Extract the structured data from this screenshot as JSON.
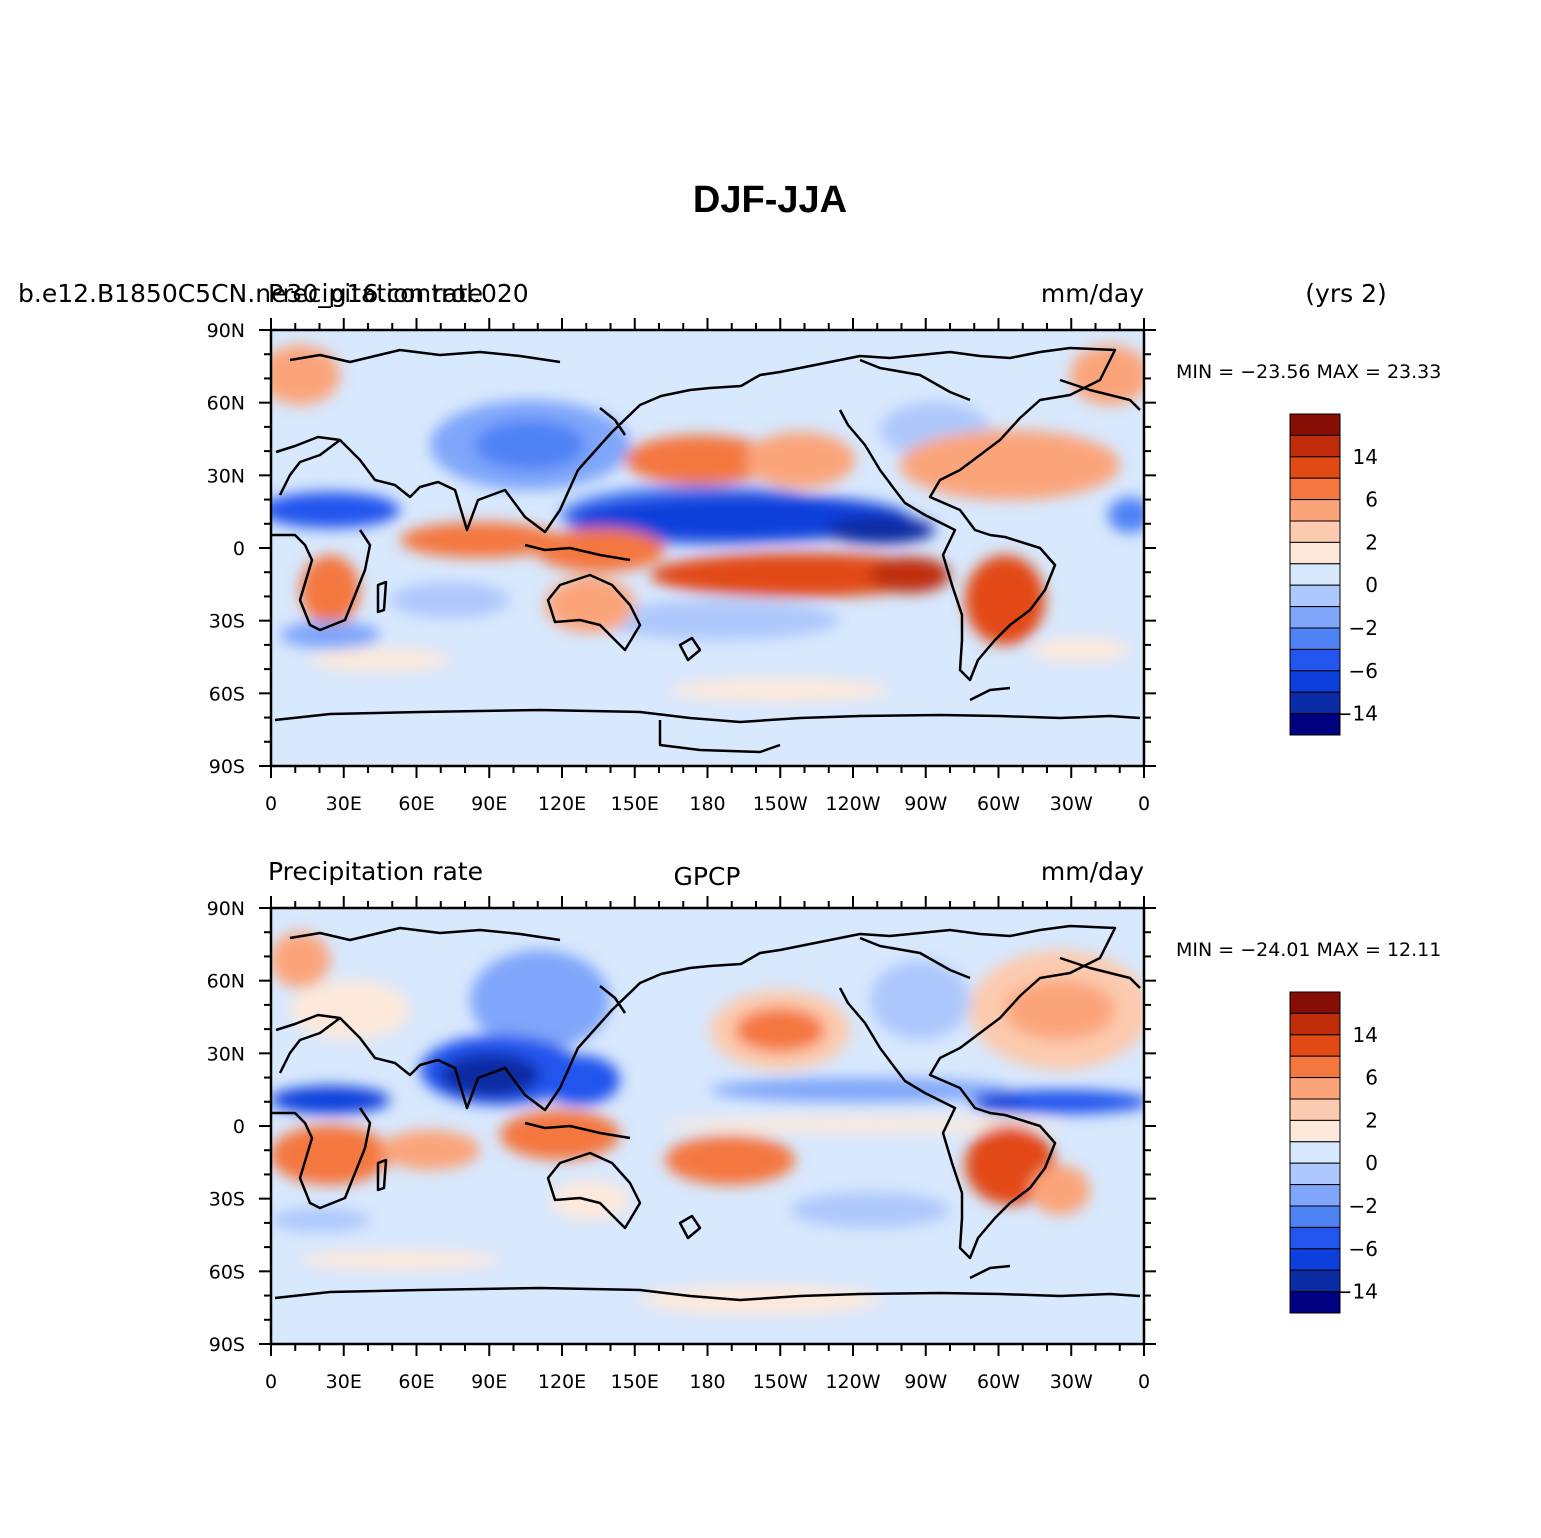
{
  "figure": {
    "title": "DJF-JJA"
  },
  "colorbar_palette": [
    "#000080",
    "#0a2ba3",
    "#0c3fdb",
    "#2255ee",
    "#4f82f5",
    "#7fa6fa",
    "#adc8fc",
    "#d8e8fd",
    "#fde9dc",
    "#fccaae",
    "#fba47a",
    "#f4773f",
    "#e24a14",
    "#bf2d0b",
    "#870e04"
  ],
  "colorbar_labels": [
    "14",
    "6",
    "2",
    "0",
    "−2",
    "−6",
    "−14"
  ],
  "chart_data": [
    {
      "type": "heatmap",
      "panel": "model",
      "left_label": "Precipitation rate",
      "case_label": "b.e12.B1850C5CN.ne30_g16.control.020",
      "center_label": "",
      "units_label": "mm/day",
      "years_label": "(yrs 2)",
      "stats_label": "MIN = −23.56  MAX =   23.33",
      "min": -23.56,
      "max": 23.33,
      "xlabel": "",
      "ylabel": "",
      "xticks": [
        "0",
        "30E",
        "60E",
        "90E",
        "120E",
        "150E",
        "180",
        "150W",
        "120W",
        "90W",
        "60W",
        "30W",
        "0"
      ],
      "yticks": [
        "90N",
        "60N",
        "30N",
        "0",
        "30S",
        "60S",
        "90S"
      ],
      "xlim": [
        0,
        360
      ],
      "ylim": [
        -90,
        90
      ],
      "colorbar_levels": [
        -20,
        -14,
        -10,
        -6,
        -4,
        -2,
        -1,
        0,
        1,
        2,
        4,
        6,
        10,
        14,
        20
      ]
    },
    {
      "type": "heatmap",
      "panel": "obs",
      "left_label": "Precipitation rate",
      "case_label": "",
      "center_label": "GPCP",
      "units_label": "mm/day",
      "years_label": "",
      "stats_label": "MIN = −24.01  MAX =   12.11",
      "min": -24.01,
      "max": 12.11,
      "xlabel": "",
      "ylabel": "",
      "xticks": [
        "0",
        "30E",
        "60E",
        "90E",
        "120E",
        "150E",
        "180",
        "150W",
        "120W",
        "90W",
        "60W",
        "30W",
        "0"
      ],
      "yticks": [
        "90N",
        "60N",
        "30N",
        "0",
        "30S",
        "60S",
        "90S"
      ],
      "xlim": [
        0,
        360
      ],
      "ylim": [
        -90,
        90
      ],
      "colorbar_levels": [
        -20,
        -14,
        -10,
        -6,
        -4,
        -2,
        -1,
        0,
        1,
        2,
        4,
        6,
        10,
        14,
        20
      ]
    }
  ]
}
